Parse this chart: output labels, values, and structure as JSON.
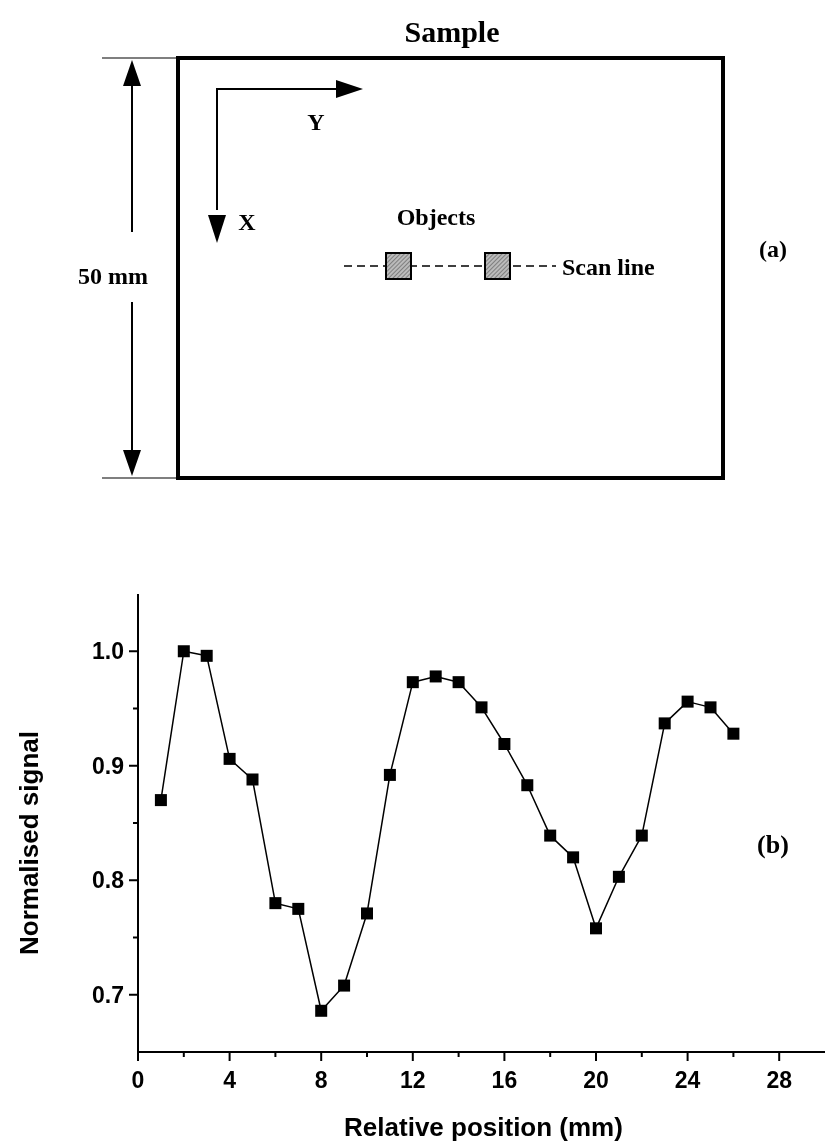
{
  "chart_data": [
    {
      "type": "other",
      "title": "Sample",
      "annotations": [
        "50 mm",
        "Y",
        "X",
        "Objects",
        "Scan line",
        "(a)"
      ]
    },
    {
      "type": "line",
      "xlabel": "Relative position (mm)",
      "ylabel": "Normalised signal",
      "annotations": [
        "(b)"
      ],
      "x": [
        1,
        2,
        3,
        4,
        5,
        6,
        7,
        8,
        9,
        10,
        11,
        12,
        13,
        14,
        15,
        16,
        17,
        18,
        19,
        20,
        21,
        22,
        23,
        24,
        25,
        26
      ],
      "series": [
        {
          "color": "#000000",
          "values": [
            0.87,
            1.0,
            0.996,
            0.906,
            0.888,
            0.78,
            0.775,
            0.686,
            0.708,
            0.771,
            0.892,
            0.973,
            0.978,
            0.973,
            0.951,
            0.919,
            0.883,
            0.839,
            0.82,
            0.758,
            0.803,
            0.839,
            0.937,
            0.956,
            0.951,
            0.928
          ]
        }
      ],
      "xlim": [
        0,
        30
      ],
      "xticks": [
        0,
        4,
        8,
        12,
        16,
        20,
        24,
        28,
        {
          "value": 2,
          "label": null
        },
        {
          "value": 6,
          "label": null
        },
        {
          "value": 10,
          "label": null
        },
        {
          "value": 14,
          "label": null
        },
        {
          "value": 18,
          "label": null
        },
        {
          "value": 22,
          "label": null
        },
        {
          "value": 26,
          "label": null
        }
      ],
      "ylim": [
        0.65,
        1.05
      ],
      "yticks": [
        {
          "value": 0.7,
          "label": "0.7"
        },
        {
          "value": 0.8,
          "label": "0.8"
        },
        {
          "value": 0.9,
          "label": "0.9"
        },
        {
          "value": 1.0,
          "label": "1.0"
        },
        {
          "value": 0.75,
          "label": null
        },
        {
          "value": 0.85,
          "label": null
        },
        {
          "value": 0.95,
          "label": null
        }
      ],
      "marker": "square",
      "line_style": "solid",
      "grid": false
    }
  ]
}
